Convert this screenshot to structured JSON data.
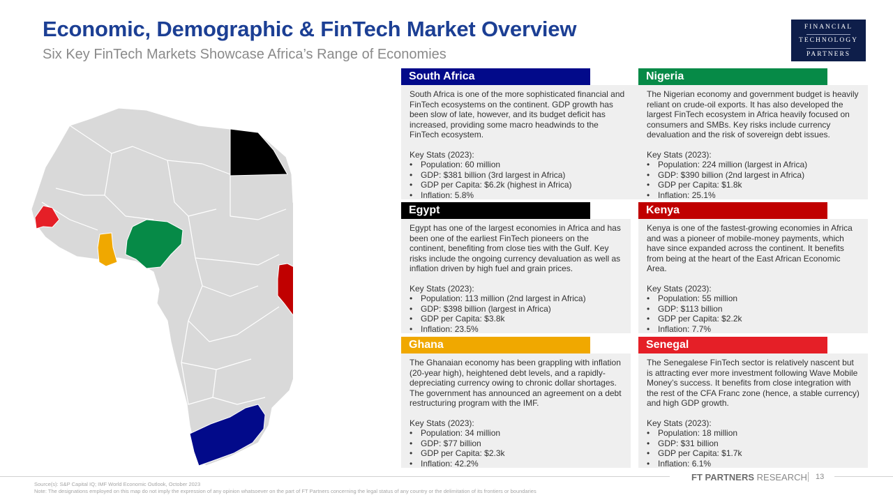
{
  "header": {
    "title": "Economic, Demographic & FinTech Market Overview",
    "subtitle": "Six Key FinTech Markets Showcase Africa’s Range of Economies"
  },
  "logo": {
    "line1": "FINANCIAL",
    "line2": "TECHNOLOGY",
    "line3": "PARTNERS"
  },
  "map": {
    "base_color": "#d9d9d9",
    "highlights": [
      {
        "country": "South Africa",
        "color": "#020a8a"
      },
      {
        "country": "Nigeria",
        "color": "#068a47"
      },
      {
        "country": "Egypt",
        "color": "#000000"
      },
      {
        "country": "Kenya",
        "color": "#c00000"
      },
      {
        "country": "Ghana",
        "color": "#f0a800"
      },
      {
        "country": "Senegal",
        "color": "#e51f27"
      }
    ]
  },
  "cards": {
    "south_africa": {
      "name": "South Africa",
      "color": "#020a8a",
      "desc": "South Africa is one of the more sophisticated financial and FinTech ecosystems on the continent. GDP growth has been slow of late, however, and its budget deficit has increased, providing some macro headwinds to the FinTech ecosystem.",
      "stats_title": "Key Stats (2023):",
      "stats": [
        "Population: 60 million",
        "GDP: $381 billion (3rd largest in Africa)",
        "GDP per Capita: $6.2k (highest in Africa)",
        "Inflation: 5.8%"
      ]
    },
    "nigeria": {
      "name": "Nigeria",
      "color": "#068a47",
      "desc": "The Nigerian economy and government budget is heavily reliant on crude-oil exports. It has also developed the largest FinTech ecosystem in Africa heavily focused on consumers and SMBs. Key risks include currency devaluation and the risk of sovereign debt issues.",
      "stats_title": "Key Stats (2023):",
      "stats": [
        "Population: 224 million (largest in Africa)",
        "GDP: $390 billion (2nd largest in Africa)",
        "GDP per Capita: $1.8k",
        "Inflation: 25.1%"
      ]
    },
    "egypt": {
      "name": "Egypt",
      "color": "#000000",
      "desc": "Egypt has one of the largest economies in Africa and has been one of the earliest FinTech pioneers on the continent, benefiting from close ties with the Gulf. Key risks include the ongoing currency devaluation as well as inflation driven by high fuel and grain prices.",
      "stats_title": "Key Stats (2023):",
      "stats": [
        "Population: 113 million (2nd largest in Africa)",
        "GDP: $398 billion (largest in Africa)",
        "GDP per Capita: $3.8k",
        "Inflation: 23.5%"
      ]
    },
    "kenya": {
      "name": "Kenya",
      "color": "#c00000",
      "desc": "Kenya is one of the fastest-growing economies in Africa and was a pioneer of mobile-money payments, which have since expanded across the continent. It benefits from being at the heart of the East African Economic Area.",
      "stats_title": "Key Stats (2023):",
      "stats": [
        "Population: 55 million",
        "GDP: $113 billion",
        "GDP per Capita: $2.2k",
        "Inflation: 7.7%"
      ]
    },
    "ghana": {
      "name": "Ghana",
      "color": "#f0a800",
      "desc": "The Ghanaian economy has been grappling with inflation (20-year high), heightened debt levels, and a rapidly-depreciating currency owing to chronic dollar shortages. The government has announced an agreement on a debt restructuring program with the IMF.",
      "stats_title": "Key Stats (2023):",
      "stats": [
        "Population: 34 million",
        "GDP: $77 billion",
        "GDP per Capita: $2.3k",
        "Inflation: 42.2%"
      ]
    },
    "senegal": {
      "name": "Senegal",
      "color": "#e51f27",
      "desc": "The Senegalese FinTech sector is relatively nascent but is attracting ever more investment following Wave Mobile Money’s success. It benefits from close integration with the rest of the CFA Franc zone (hence, a stable currency) and high GDP growth.",
      "stats_title": "Key Stats (2023):",
      "stats": [
        "Population: 18 million",
        "GDP: $31 billion",
        "GDP per Capita: $1.7k",
        "Inflation: 6.1%"
      ]
    }
  },
  "footer": {
    "source": "Source(s): S&P Capital IQ; IMF World Economic Outlook, October 2023",
    "note": "Note: The designations employed on this map do not imply the expression of any opinion whatsoever on the part of FT Partners concerning the legal status of any country or the delimitation of its frontiers or boundaries",
    "brand_bold": "FT PARTNERS",
    "brand_light": " RESEARCH",
    "page": "13"
  }
}
